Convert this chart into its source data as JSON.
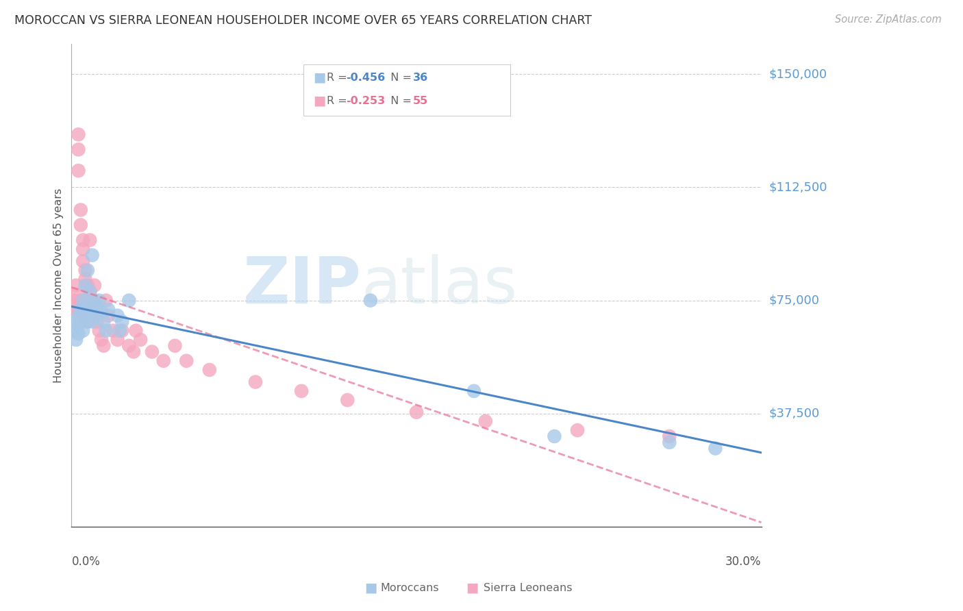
{
  "title": "MOROCCAN VS SIERRA LEONEAN HOUSEHOLDER INCOME OVER 65 YEARS CORRELATION CHART",
  "source": "Source: ZipAtlas.com",
  "ylabel": "Householder Income Over 65 years",
  "xlim": [
    0.0,
    0.3
  ],
  "ylim": [
    0,
    160000
  ],
  "yticks": [
    0,
    37500,
    75000,
    112500,
    150000
  ],
  "ytick_labels": [
    "",
    "$37,500",
    "$75,000",
    "$112,500",
    "$150,000"
  ],
  "moroccan_color": "#a8c8e8",
  "sierra_color": "#f4a8c0",
  "moroccan_line_color": "#4a86c8",
  "sierra_line_color": "#e87090",
  "watermark_zip": "ZIP",
  "watermark_atlas": "atlas",
  "moroccan_R": "-0.456",
  "moroccan_N": "36",
  "sierra_R": "-0.253",
  "sierra_N": "55",
  "moroccan_x": [
    0.001,
    0.002,
    0.002,
    0.003,
    0.003,
    0.003,
    0.004,
    0.004,
    0.005,
    0.005,
    0.005,
    0.006,
    0.006,
    0.007,
    0.007,
    0.008,
    0.008,
    0.009,
    0.009,
    0.01,
    0.01,
    0.011,
    0.012,
    0.013,
    0.014,
    0.015,
    0.016,
    0.02,
    0.021,
    0.022,
    0.025,
    0.13,
    0.175,
    0.21,
    0.26,
    0.28
  ],
  "moroccan_y": [
    65000,
    68000,
    62000,
    70000,
    67000,
    64000,
    72000,
    68000,
    75000,
    71000,
    65000,
    80000,
    73000,
    85000,
    68000,
    78000,
    72000,
    90000,
    68000,
    75000,
    70000,
    73000,
    75000,
    71000,
    68000,
    65000,
    72000,
    70000,
    65000,
    68000,
    75000,
    75000,
    45000,
    30000,
    28000,
    26000
  ],
  "sierra_x": [
    0.001,
    0.001,
    0.002,
    0.002,
    0.002,
    0.003,
    0.003,
    0.003,
    0.003,
    0.004,
    0.004,
    0.004,
    0.005,
    0.005,
    0.005,
    0.005,
    0.006,
    0.006,
    0.006,
    0.007,
    0.007,
    0.007,
    0.007,
    0.008,
    0.008,
    0.008,
    0.009,
    0.009,
    0.01,
    0.01,
    0.011,
    0.012,
    0.013,
    0.014,
    0.015,
    0.016,
    0.018,
    0.02,
    0.022,
    0.025,
    0.027,
    0.028,
    0.03,
    0.035,
    0.04,
    0.045,
    0.05,
    0.06,
    0.08,
    0.1,
    0.12,
    0.15,
    0.18,
    0.22,
    0.26
  ],
  "sierra_y": [
    75000,
    72000,
    80000,
    77000,
    73000,
    130000,
    125000,
    118000,
    72000,
    105000,
    100000,
    75000,
    95000,
    92000,
    88000,
    73000,
    85000,
    82000,
    70000,
    80000,
    75000,
    72000,
    68000,
    95000,
    78000,
    72000,
    75000,
    70000,
    80000,
    72000,
    68000,
    65000,
    62000,
    60000,
    75000,
    70000,
    65000,
    62000,
    65000,
    60000,
    58000,
    65000,
    62000,
    58000,
    55000,
    60000,
    55000,
    52000,
    48000,
    45000,
    42000,
    38000,
    35000,
    32000,
    30000
  ]
}
